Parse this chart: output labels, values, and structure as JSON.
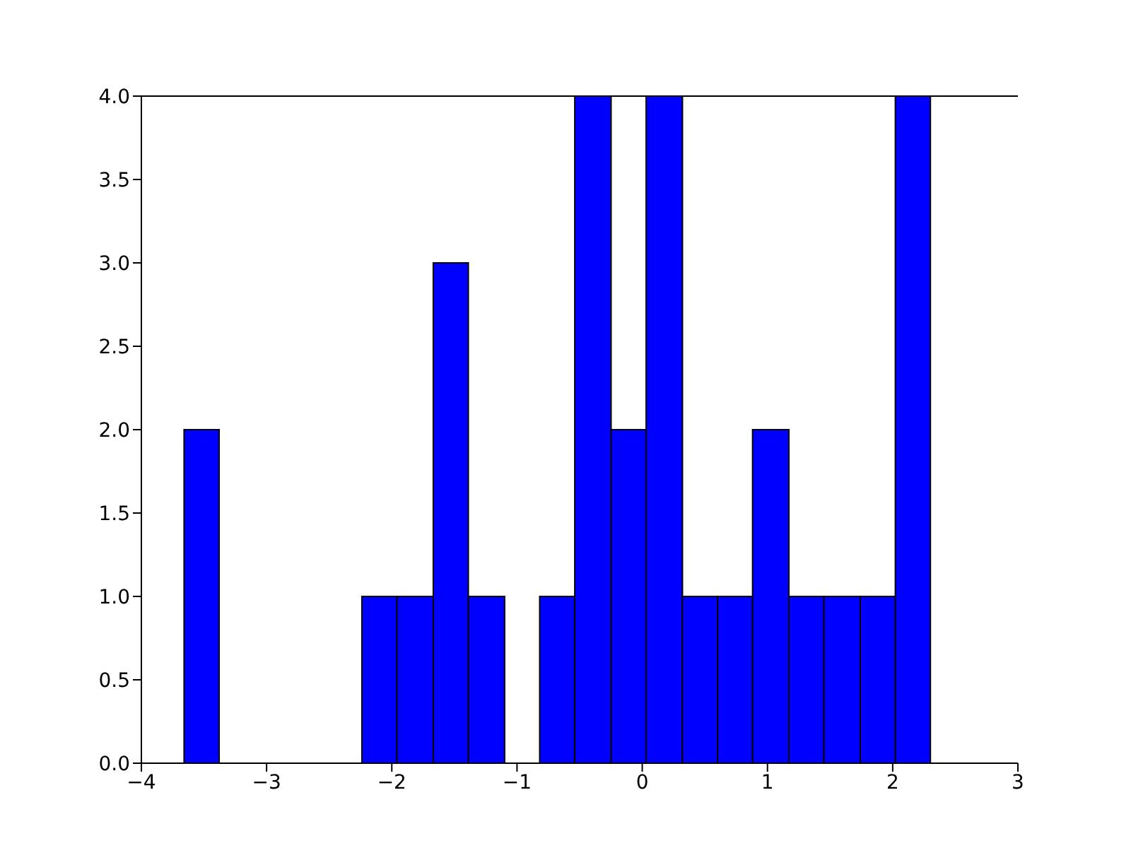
{
  "chart_data": {
    "type": "histogram",
    "bins": [
      -3.66,
      -3.38,
      -2.24,
      -1.96,
      -1.67,
      -1.39,
      -1.1,
      -0.82,
      -0.54,
      -0.25,
      0.03,
      0.32,
      0.6,
      0.88,
      1.17,
      1.45,
      1.74,
      2.02,
      2.3
    ],
    "values": [
      2,
      0,
      1,
      1,
      3,
      1,
      0,
      1,
      4,
      2,
      4,
      1,
      1,
      2,
      1,
      1,
      1,
      4
    ],
    "color": "#0000ff",
    "xlim": [
      -4,
      3
    ],
    "xticks": [
      {
        "value": -4,
        "label": "−4"
      },
      {
        "value": -3,
        "label": "−3"
      },
      {
        "value": -2,
        "label": "−2"
      },
      {
        "value": -1,
        "label": "−1"
      },
      0,
      1,
      2,
      3
    ],
    "ylim": [
      0,
      4
    ],
    "yticks": [
      {
        "value": 0,
        "label": "0.0"
      },
      {
        "value": 0.5,
        "label": "0.5"
      },
      {
        "value": 1,
        "label": "1.0"
      },
      {
        "value": 1.5,
        "label": "1.5"
      },
      {
        "value": 2,
        "label": "2.0"
      },
      {
        "value": 2.5,
        "label": "2.5"
      },
      {
        "value": 3,
        "label": "3.0"
      },
      {
        "value": 3.5,
        "label": "3.5"
      },
      {
        "value": 4,
        "label": "4.0"
      }
    ]
  }
}
